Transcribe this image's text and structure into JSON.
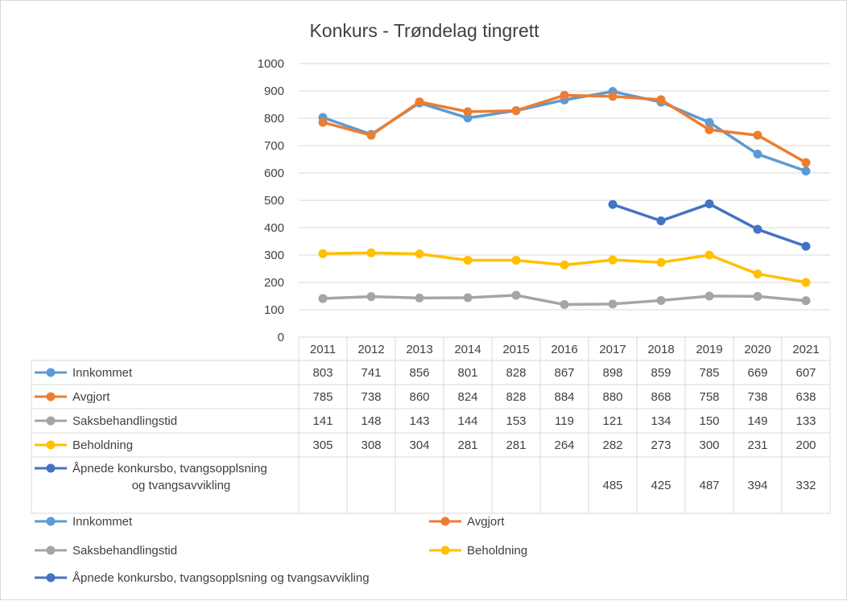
{
  "chart_data": {
    "type": "line",
    "title": "Konkurs - Trøndelag tingrett",
    "categories": [
      "2011",
      "2012",
      "2013",
      "2014",
      "2015",
      "2016",
      "2017",
      "2018",
      "2019",
      "2020",
      "2021"
    ],
    "ylim": [
      0,
      1000
    ],
    "yticks": [
      0,
      100,
      200,
      300,
      400,
      500,
      600,
      700,
      800,
      900,
      1000
    ],
    "grid": true,
    "data_table": true,
    "legend_position": "bottom",
    "series": [
      {
        "name": "Innkommet",
        "color": "#5b9bd5",
        "values": [
          803,
          741,
          856,
          801,
          828,
          867,
          898,
          859,
          785,
          669,
          607
        ]
      },
      {
        "name": "Avgjort",
        "color": "#ed7d31",
        "values": [
          785,
          738,
          860,
          824,
          828,
          884,
          880,
          868,
          758,
          738,
          638
        ]
      },
      {
        "name": "Saksbehandlingstid",
        "color": "#a5a5a5",
        "values": [
          141,
          148,
          143,
          144,
          153,
          119,
          121,
          134,
          150,
          149,
          133
        ]
      },
      {
        "name": "Beholdning",
        "color": "#ffc000",
        "values": [
          305,
          308,
          304,
          281,
          281,
          264,
          282,
          273,
          300,
          231,
          200
        ]
      },
      {
        "name": "Åpnede konkursbo, tvangsopplsning og tvangsavvikling",
        "table_label_lines": [
          "Åpnede konkursbo, tvangsopplsning",
          "og tvangsavvikling"
        ],
        "color": "#4472c4",
        "values": [
          null,
          null,
          null,
          null,
          null,
          null,
          485,
          425,
          487,
          394,
          332
        ]
      }
    ]
  }
}
